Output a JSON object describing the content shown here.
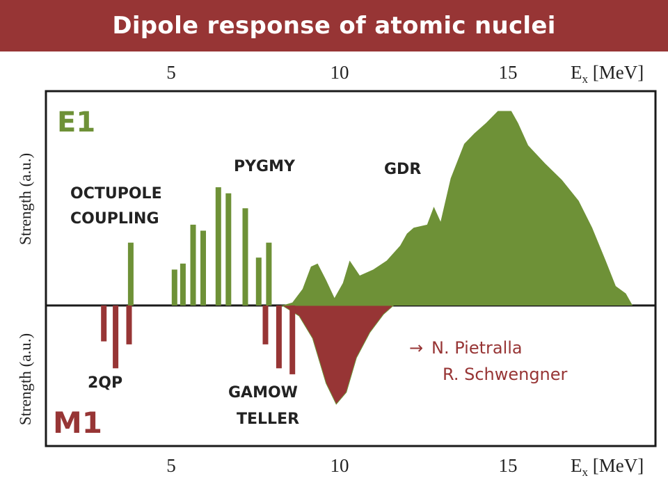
{
  "title": "Dipole response of atomic nuclei",
  "axis": {
    "ticks": [
      "5",
      "10",
      "15"
    ],
    "tick_values": [
      5,
      10,
      15
    ],
    "unit_label_main": "E",
    "unit_label_sub": "x",
    "unit_label_rest": " [MeV]",
    "ylabel_top": "Strength (a.u.)",
    "ylabel_bottom": "Strength (a.u.)"
  },
  "labels": {
    "e1": "E1",
    "m1": "M1",
    "octupole_line1": "OCTUPOLE",
    "octupole_line2": "COUPLING",
    "pygmy": "PYGMY",
    "gdr": "GDR",
    "twoqp": "2QP",
    "gamow": "GAMOW",
    "teller": "TELLER"
  },
  "reference": {
    "arrow": "→",
    "line1": "N. Pietralla",
    "line2": "R. Schwengner"
  },
  "colors": {
    "title_bar": "#973535",
    "e1_green": "#6e9137",
    "m1_red": "#973535",
    "frame": "#1a1a1a"
  },
  "chart_data": {
    "type": "area",
    "x_unit": "MeV",
    "xlim": [
      2.3,
      19.0
    ],
    "e1_bars": [
      {
        "x": 3.8,
        "h": 0.42
      },
      {
        "x": 5.1,
        "h": 0.24
      },
      {
        "x": 5.35,
        "h": 0.28
      },
      {
        "x": 5.65,
        "h": 0.54
      },
      {
        "x": 5.95,
        "h": 0.5
      },
      {
        "x": 6.4,
        "h": 0.79
      },
      {
        "x": 6.7,
        "h": 0.75
      },
      {
        "x": 7.2,
        "h": 0.65
      },
      {
        "x": 7.6,
        "h": 0.32
      },
      {
        "x": 7.9,
        "h": 0.42
      }
    ],
    "m1_bars": [
      {
        "x": 3.0,
        "h": 0.24
      },
      {
        "x": 3.35,
        "h": 0.42
      },
      {
        "x": 3.75,
        "h": 0.26
      },
      {
        "x": 7.8,
        "h": 0.26
      },
      {
        "x": 8.2,
        "h": 0.42
      },
      {
        "x": 8.6,
        "h": 0.46
      }
    ],
    "e1_curve": [
      [
        8.3,
        0.0
      ],
      [
        8.6,
        0.02
      ],
      [
        8.9,
        0.11
      ],
      [
        9.15,
        0.26
      ],
      [
        9.35,
        0.28
      ],
      [
        9.6,
        0.17
      ],
      [
        9.85,
        0.05
      ],
      [
        10.1,
        0.15
      ],
      [
        10.3,
        0.3
      ],
      [
        10.6,
        0.2
      ],
      [
        11.0,
        0.24
      ],
      [
        11.4,
        0.3
      ],
      [
        11.8,
        0.4
      ],
      [
        12.0,
        0.48
      ],
      [
        12.2,
        0.52
      ],
      [
        12.6,
        0.54
      ],
      [
        12.8,
        0.66
      ],
      [
        13.0,
        0.56
      ],
      [
        13.3,
        0.85
      ],
      [
        13.7,
        1.08
      ],
      [
        14.0,
        1.15
      ],
      [
        14.35,
        1.22
      ],
      [
        14.7,
        1.3
      ],
      [
        15.1,
        1.3
      ],
      [
        15.3,
        1.22
      ],
      [
        15.6,
        1.07
      ],
      [
        16.1,
        0.95
      ],
      [
        16.6,
        0.84
      ],
      [
        17.1,
        0.7
      ],
      [
        17.5,
        0.52
      ],
      [
        17.9,
        0.3
      ],
      [
        18.2,
        0.13
      ],
      [
        18.5,
        0.08
      ],
      [
        18.7,
        0.0
      ]
    ],
    "m1_curve": [
      [
        8.3,
        0.0
      ],
      [
        8.8,
        0.07
      ],
      [
        9.2,
        0.22
      ],
      [
        9.6,
        0.52
      ],
      [
        9.9,
        0.66
      ],
      [
        10.2,
        0.58
      ],
      [
        10.5,
        0.35
      ],
      [
        10.9,
        0.18
      ],
      [
        11.3,
        0.06
      ],
      [
        11.6,
        0.0
      ]
    ]
  }
}
